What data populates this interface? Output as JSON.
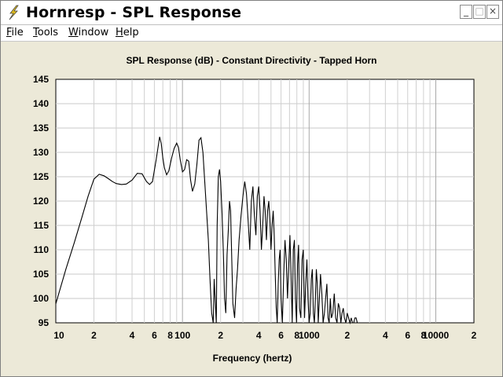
{
  "window": {
    "title": "Hornresp - SPL Response",
    "minimize_glyph": "_",
    "maximize_glyph": "□",
    "close_glyph": "×",
    "app_icon": "lightning-bolt-icon"
  },
  "menu": {
    "items": [
      {
        "key": "F",
        "rest": "ile"
      },
      {
        "key": "T",
        "rest": "ools"
      },
      {
        "key": "W",
        "rest": "indow"
      },
      {
        "key": "H",
        "rest": "elp"
      }
    ]
  },
  "chart_data": {
    "type": "line",
    "title": "SPL Response (dB) - Constant Directivity - Tapped Horn",
    "xlabel": "Frequency (hertz)",
    "ylabel": "",
    "x_scale": "log",
    "xlim": [
      10,
      20000
    ],
    "ylim": [
      95,
      145
    ],
    "y_ticks": [
      95,
      100,
      105,
      110,
      115,
      120,
      125,
      130,
      135,
      140,
      145
    ],
    "x_tick_labels": [
      {
        "x": 10,
        "label": "10"
      },
      {
        "x": 20,
        "label": "2"
      },
      {
        "x": 40,
        "label": "4"
      },
      {
        "x": 60,
        "label": "6"
      },
      {
        "x": 80,
        "label": "8"
      },
      {
        "x": 100,
        "label": "100"
      },
      {
        "x": 200,
        "label": "2"
      },
      {
        "x": 400,
        "label": "4"
      },
      {
        "x": 600,
        "label": "6"
      },
      {
        "x": 800,
        "label": "8"
      },
      {
        "x": 1000,
        "label": "1000"
      },
      {
        "x": 2000,
        "label": "2"
      },
      {
        "x": 4000,
        "label": "4"
      },
      {
        "x": 6000,
        "label": "6"
      },
      {
        "x": 8000,
        "label": "8"
      },
      {
        "x": 10000,
        "label": "10000"
      },
      {
        "x": 20000,
        "label": "2"
      }
    ],
    "grid": true,
    "legend": "none",
    "line_color": "#000000",
    "series": [
      {
        "x": [
          10,
          12,
          14,
          16,
          18,
          20,
          22,
          24,
          26,
          28,
          30,
          33,
          36,
          40,
          44,
          48,
          52,
          55,
          58,
          62,
          66,
          68,
          70,
          72,
          75,
          78,
          82,
          86,
          90,
          93,
          96,
          100,
          104,
          108,
          112,
          116,
          120,
          125,
          130,
          135,
          140,
          145,
          150,
          155,
          160,
          165,
          170,
          175,
          178,
          181,
          185,
          188,
          192,
          196,
          200,
          205,
          210,
          215,
          220,
          225,
          230,
          235,
          240,
          245,
          250,
          258,
          265,
          272,
          280,
          290,
          300,
          310,
          320,
          330,
          340,
          350,
          360,
          370,
          380,
          390,
          400,
          410,
          420,
          430,
          440,
          450,
          460,
          470,
          480,
          490,
          500,
          510,
          520,
          530,
          540,
          550,
          560,
          570,
          580,
          590,
          600,
          615,
          630,
          645,
          660,
          675,
          690,
          705,
          720,
          735,
          750,
          765,
          780,
          795,
          810,
          825,
          840,
          860,
          880,
          900,
          920,
          940,
          960,
          980,
          1000,
          1020,
          1040,
          1060,
          1080,
          1100,
          1120,
          1140,
          1160,
          1180,
          1200,
          1230,
          1260,
          1290,
          1320,
          1350,
          1380,
          1410,
          1440,
          1470,
          1500,
          1540,
          1580,
          1620,
          1660,
          1700,
          1740,
          1780,
          1820,
          1860,
          1900,
          1950,
          2000,
          2050,
          2100,
          2150,
          2200,
          2250,
          2300,
          2350,
          2400
        ],
        "y": [
          98.9,
          106,
          111.5,
          116.5,
          121,
          124.5,
          125.5,
          125.2,
          124.6,
          124,
          123.6,
          123.4,
          123.5,
          124.3,
          125.7,
          125.6,
          124,
          123.4,
          124,
          128.5,
          133.2,
          131.8,
          128.8,
          126.8,
          125.4,
          126.2,
          128.8,
          130.8,
          131.9,
          131,
          128.5,
          126,
          126.5,
          128.5,
          128.2,
          124.3,
          122,
          123.5,
          127.5,
          132.5,
          133,
          130,
          124,
          118,
          112,
          104,
          97,
          95,
          104,
          100,
          95,
          115,
          125,
          126.5,
          124,
          118,
          110,
          100,
          97,
          109,
          114,
          120,
          118,
          108,
          99,
          96,
          102,
          106,
          112,
          117,
          121,
          124,
          121.5,
          116,
          110,
          120,
          123,
          117,
          113,
          121,
          123,
          118,
          110,
          115,
          121,
          118,
          112,
          118,
          120,
          116,
          110,
          115,
          118,
          113,
          105,
          98,
          95,
          103,
          108,
          110,
          100,
          95,
          105,
          112,
          108,
          100,
          107,
          113,
          105,
          95,
          110,
          112,
          100,
          95,
          107,
          111,
          98,
          96,
          108,
          110,
          96,
          103,
          108,
          100,
          95,
          97,
          104,
          106,
          97,
          95,
          100,
          106,
          103,
          95,
          99,
          105,
          101,
          95,
          97,
          100,
          103,
          96,
          95,
          100,
          96,
          97,
          101,
          96,
          95,
          99,
          98,
          95,
          97,
          98,
          96,
          95,
          97,
          96,
          95,
          96,
          95,
          95,
          96,
          96,
          95
        ]
      }
    ]
  }
}
